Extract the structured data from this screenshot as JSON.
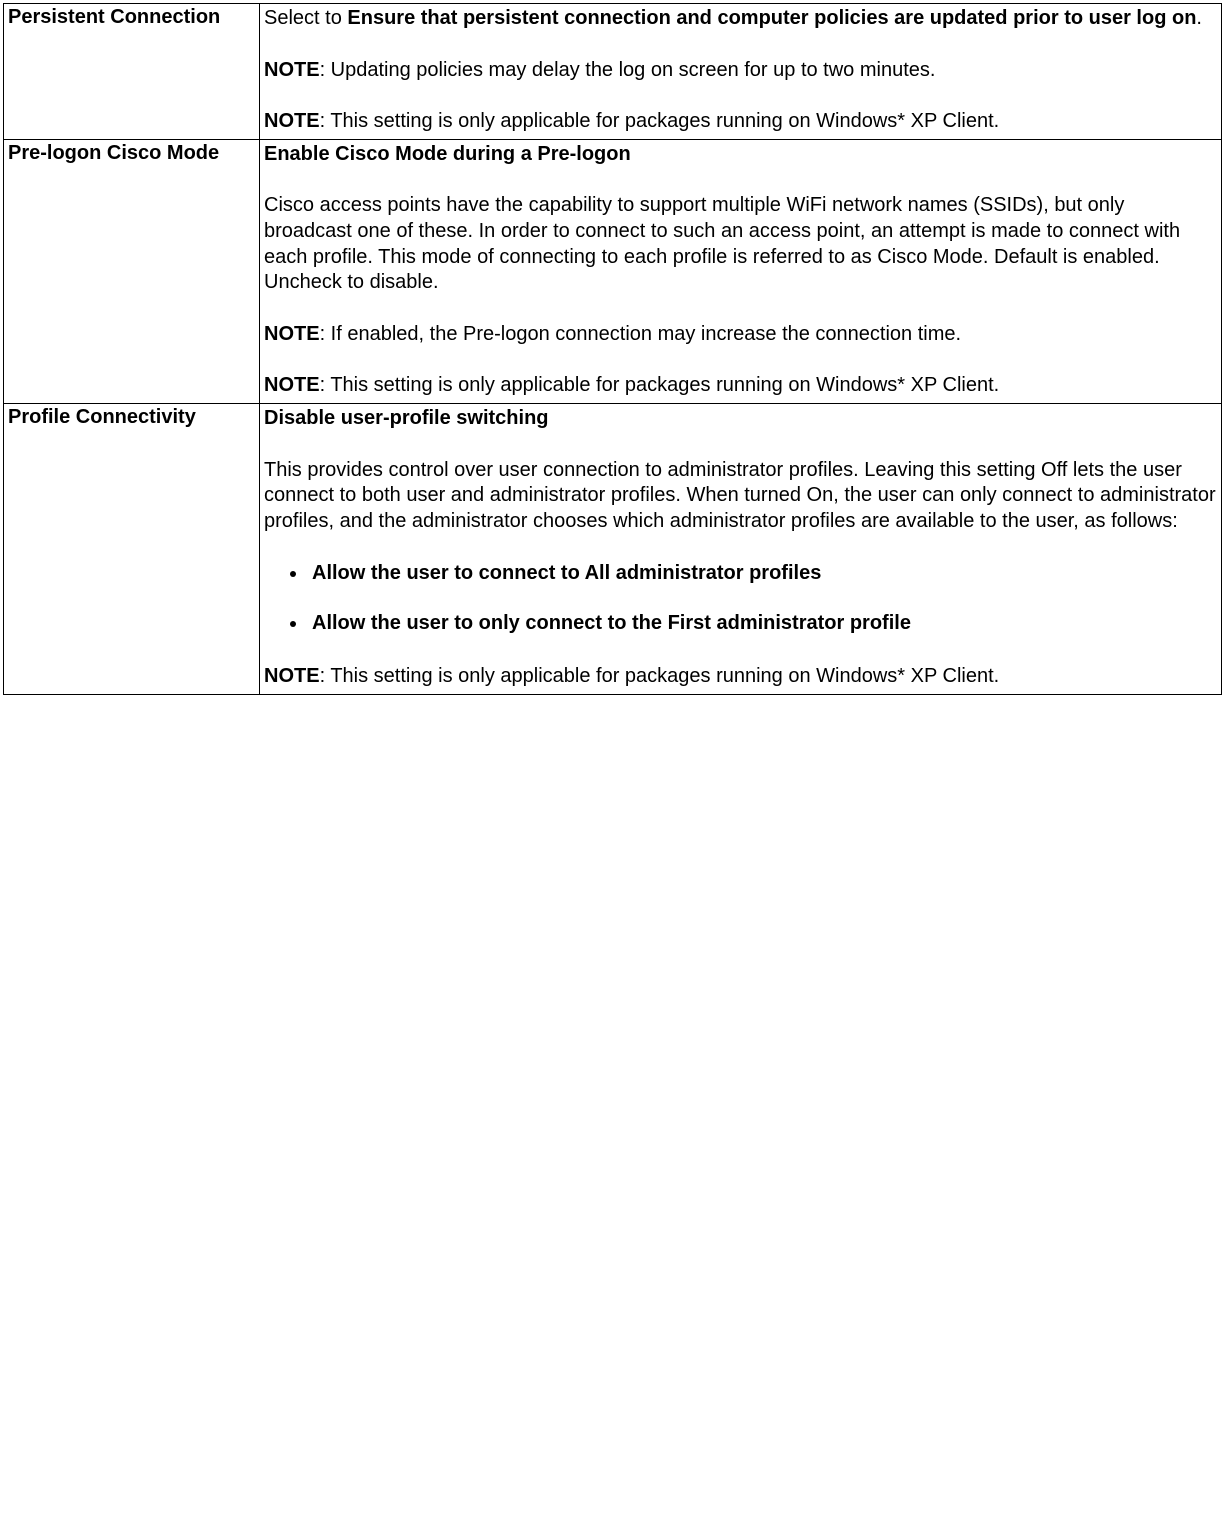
{
  "rows": [
    {
      "name": "Persistent Connection",
      "intro_prefix": "Select to ",
      "intro_bold": "Ensure that persistent connection and computer policies are updated prior to user log on",
      "intro_suffix": ".",
      "note1_label": "NOTE",
      "note1_text": ": Updating policies may delay the log on screen for up to two minutes.",
      "note2_label": "NOTE",
      "note2_text": ": This setting is only applicable for packages running on Windows* XP Client."
    },
    {
      "name": "Pre-logon Cisco Mode",
      "heading": "Enable Cisco Mode during a Pre-logon",
      "body": "Cisco access points have the capability to support multiple WiFi network names (SSIDs), but only broadcast one of these. In order to connect to such an access point, an attempt is made to connect with each profile. This mode of connecting to each profile is referred to as Cisco Mode. Default is enabled. Uncheck to disable.",
      "note1_label": "NOTE",
      "note1_text": ": If enabled, the Pre-logon connection may increase the connection time.",
      "note2_label": "NOTE",
      "note2_text": ": This setting is only applicable for packages running on Windows* XP Client."
    },
    {
      "name": "Profile Connectivity",
      "heading": "Disable user-profile switching",
      "body": "This provides control over user connection to administrator profiles. Leaving this setting Off lets the user connect to both user and administrator profiles. When turned On, the user can only connect to administrator profiles, and the administrator chooses which administrator profiles are available to the user, as follows:",
      "options": [
        "Allow the user to connect to All administrator profiles",
        "Allow the user to only connect to the First administrator profile"
      ],
      "note1_label": "NOTE",
      "note1_text": ": This setting is only applicable for packages running on Windows* XP Client."
    }
  ]
}
